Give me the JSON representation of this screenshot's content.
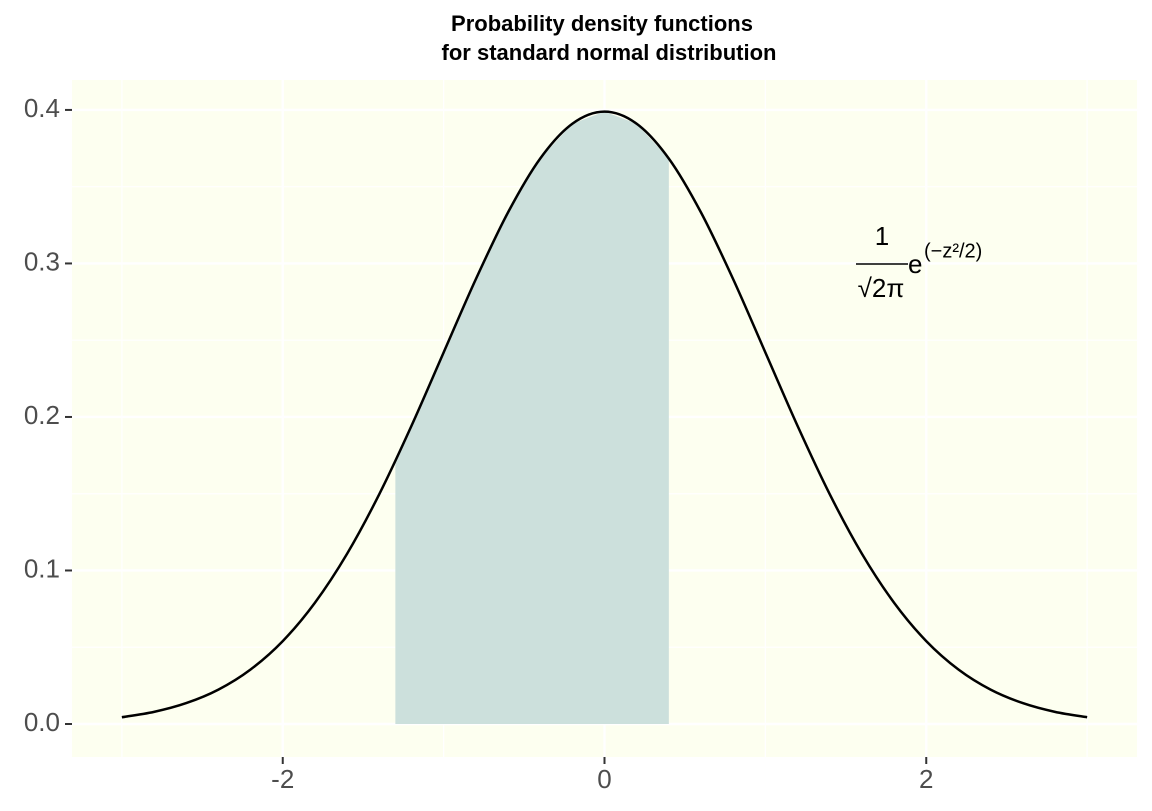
{
  "chart_data": {
    "type": "line",
    "title": "Probability density functions",
    "subtitle": "for standard normal distribution",
    "x": [
      -3,
      -2.8,
      -2.6,
      -2.4,
      -2.2,
      -2,
      -1.8,
      -1.6,
      -1.4,
      -1.2,
      -1,
      -0.8,
      -0.6,
      -0.4,
      -0.2,
      0,
      0.2,
      0.4,
      0.6,
      0.8,
      1,
      1.2,
      1.4,
      1.6,
      1.8,
      2,
      2.2,
      2.4,
      2.6,
      2.8,
      3
    ],
    "series": [
      {
        "values": [
          0.0044,
          0.0079,
          0.0136,
          0.0224,
          0.0355,
          0.054,
          0.079,
          0.1109,
          0.1497,
          0.1942,
          0.242,
          0.2897,
          0.3332,
          0.3683,
          0.391,
          0.3989,
          0.391,
          0.3683,
          0.3332,
          0.2897,
          0.242,
          0.1942,
          0.1497,
          0.1109,
          0.079,
          0.054,
          0.0355,
          0.0224,
          0.0136,
          0.0079,
          0.0044
        ],
        "color": "#000000"
      }
    ],
    "shaded_area": {
      "x": [
        -1.3,
        -1.2,
        -1,
        -0.8,
        -0.6,
        -0.4,
        -0.2,
        0,
        0.2,
        0.4
      ],
      "values": [
        0.1714,
        0.1942,
        0.242,
        0.2897,
        0.3332,
        0.3683,
        0.391,
        0.3989,
        0.391,
        0.3683
      ],
      "color": "#cce0dc"
    },
    "annotation": {
      "numerator": "1",
      "denominator": "√2π",
      "base": "e",
      "exponent": "(−z²/2)"
    },
    "xlim": [
      -3.31,
      3.31
    ],
    "ylim": [
      -0.0215,
      0.4195
    ],
    "xticks": [
      -2,
      0,
      2
    ],
    "yticks": [
      {
        "value": 0,
        "label": "0.0"
      },
      0.1,
      0.2,
      0.3,
      0.4
    ],
    "minor_xticks": [
      -3,
      -1,
      1,
      3
    ],
    "minor_yticks": [
      0.05,
      0.15,
      0.25,
      0.35
    ],
    "grid": true,
    "panel_color": "#fdfff0"
  }
}
